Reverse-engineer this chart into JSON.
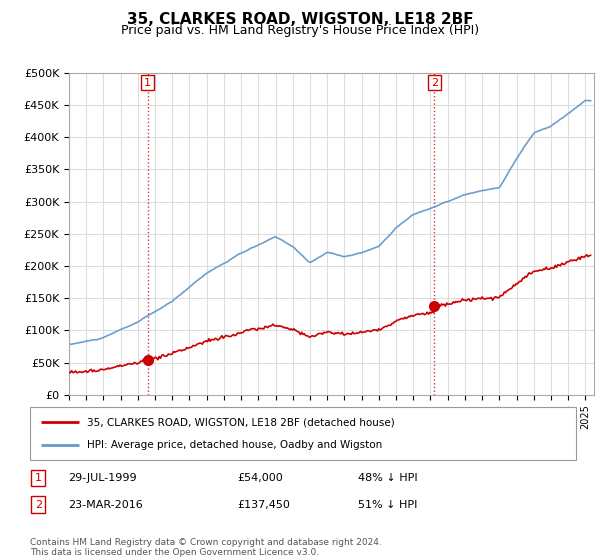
{
  "title": "35, CLARKES ROAD, WIGSTON, LE18 2BF",
  "subtitle": "Price paid vs. HM Land Registry's House Price Index (HPI)",
  "title_fontsize": 11,
  "subtitle_fontsize": 9,
  "ylabel_ticks": [
    "£0",
    "£50K",
    "£100K",
    "£150K",
    "£200K",
    "£250K",
    "£300K",
    "£350K",
    "£400K",
    "£450K",
    "£500K"
  ],
  "ytick_values": [
    0,
    50000,
    100000,
    150000,
    200000,
    250000,
    300000,
    350000,
    400000,
    450000,
    500000
  ],
  "ylim": [
    0,
    500000
  ],
  "xlim_start": 1995.0,
  "xlim_end": 2025.5,
  "line_color_red": "#cc0000",
  "line_color_blue": "#6699cc",
  "point1_x": 1999.57,
  "point1_y": 54000,
  "point1_label": "1",
  "point1_date": "29-JUL-1999",
  "point1_price": "£54,000",
  "point1_hpi": "48% ↓ HPI",
  "point2_x": 2016.22,
  "point2_y": 137450,
  "point2_label": "2",
  "point2_date": "23-MAR-2016",
  "point2_price": "£137,450",
  "point2_hpi": "51% ↓ HPI",
  "legend_line1": "35, CLARKES ROAD, WIGSTON, LE18 2BF (detached house)",
  "legend_line2": "HPI: Average price, detached house, Oadby and Wigston",
  "footer": "Contains HM Land Registry data © Crown copyright and database right 2024.\nThis data is licensed under the Open Government Licence v3.0.",
  "vline1_x": 1999.57,
  "vline2_x": 2016.22,
  "background_color": "#ffffff",
  "grid_color": "#dddddd",
  "hpi_key_years": [
    1995,
    1997,
    1999,
    2001,
    2003,
    2005,
    2007,
    2008,
    2009,
    2010,
    2011,
    2012,
    2013,
    2014,
    2015,
    2016,
    2017,
    2018,
    2019,
    2020,
    2021,
    2022,
    2023,
    2024,
    2025
  ],
  "hpi_key_values": [
    78000,
    88000,
    112000,
    143000,
    188000,
    218000,
    242000,
    228000,
    202000,
    218000,
    212000,
    218000,
    228000,
    258000,
    278000,
    288000,
    298000,
    308000,
    313000,
    318000,
    362000,
    402000,
    412000,
    432000,
    452000
  ]
}
